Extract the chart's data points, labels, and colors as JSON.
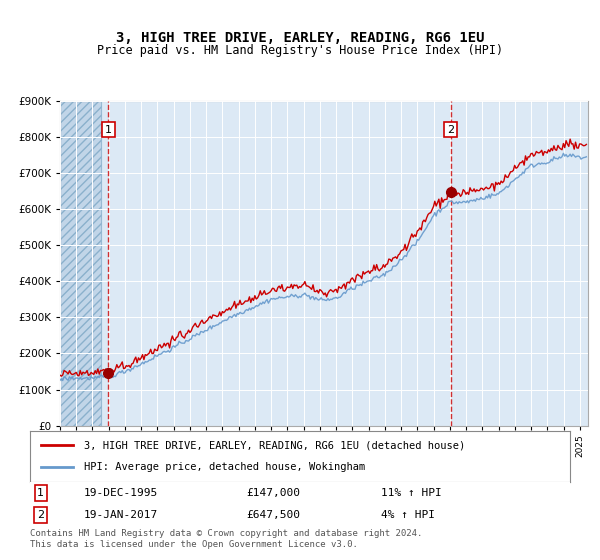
{
  "title": "3, HIGH TREE DRIVE, EARLEY, READING, RG6 1EU",
  "subtitle": "Price paid vs. HM Land Registry's House Price Index (HPI)",
  "legend_line1": "3, HIGH TREE DRIVE, EARLEY, READING, RG6 1EU (detached house)",
  "legend_line2": "HPI: Average price, detached house, Wokingham",
  "sale1_date": "19-DEC-1995",
  "sale1_price": "£147,000",
  "sale1_hpi": "11% ↑ HPI",
  "sale2_date": "19-JAN-2017",
  "sale2_price": "£647,500",
  "sale2_hpi": "4% ↑ HPI",
  "footer": "Contains HM Land Registry data © Crown copyright and database right 2024.\nThis data is licensed under the Open Government Licence v3.0.",
  "hpi_color": "#6699cc",
  "property_color": "#cc0000",
  "sale_dot_color": "#990000",
  "vline_color": "#cc0000",
  "bg_color": "#dce9f5",
  "hatch_color": "#b0c8e0",
  "grid_color": "#ffffff",
  "ylim": [
    0,
    900000
  ],
  "sale1_year": 1995.97,
  "sale1_value": 147000,
  "sale2_year": 2017.05,
  "sale2_value": 647500,
  "xmin": 1993.0,
  "xmax": 2025.5
}
